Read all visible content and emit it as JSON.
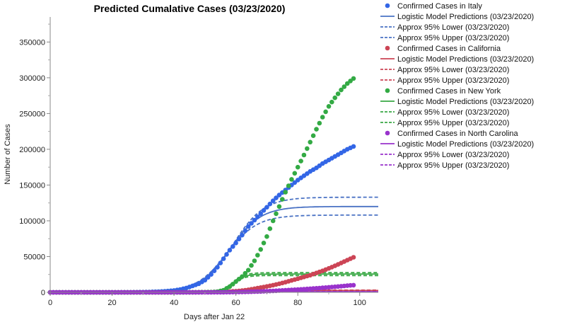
{
  "chart_data": {
    "type": "scatter",
    "title": "Predicted Cumalative Cases (03/23/2020)",
    "xlabel": "Days after Jan 22",
    "ylabel": "Number of Cases",
    "xlim": [
      0,
      106
    ],
    "ylim": [
      0,
      385000
    ],
    "xticks": [
      "0",
      "20",
      "40",
      "60",
      "80",
      "100"
    ],
    "yticks": [
      "0",
      "50000",
      "100000",
      "150000",
      "200000",
      "250000",
      "300000",
      "350000"
    ],
    "ytick_values": [
      0,
      50000,
      100000,
      150000,
      200000,
      250000,
      300000,
      350000
    ],
    "xtick_values": [
      0,
      20,
      40,
      60,
      80,
      100
    ],
    "series": [
      {
        "name": "Italy",
        "color": "#3366e6",
        "line_color": "#4a72c4",
        "confirmed_label": "Confirmed Cases in Italy",
        "prediction_label": "Logistic Model Predictions (03/23/2020)",
        "lower_label": "Approx 95% Lower (03/23/2020)",
        "upper_label": "Approx 95% Upper (03/23/2020)",
        "confirmed_x": [
          0,
          5,
          10,
          15,
          20,
          25,
          30,
          32,
          34,
          36,
          38,
          40,
          42,
          44,
          46,
          48,
          50,
          52,
          54,
          56,
          58,
          60,
          62,
          64,
          66,
          68,
          70,
          72,
          74,
          76,
          78,
          80,
          82,
          84,
          86,
          88,
          90,
          92,
          94,
          96,
          98
        ],
        "confirmed_y": [
          0,
          0,
          0,
          0,
          0,
          100,
          300,
          500,
          800,
          1200,
          1800,
          2600,
          4000,
          6000,
          9000,
          12000,
          17000,
          25000,
          35000,
          47000,
          59000,
          69000,
          80000,
          92000,
          101000,
          110000,
          119000,
          128000,
          136000,
          143000,
          150000,
          157000,
          163000,
          169000,
          174000,
          180000,
          185000,
          190000,
          195000,
          200000,
          204000
        ],
        "predicted": {
          "K": 120000,
          "r": 0.2,
          "t0": 58
        },
        "lower": {
          "K": 108000,
          "r": 0.2,
          "t0": 57
        },
        "upper": {
          "K": 133000,
          "r": 0.2,
          "t0": 59
        }
      },
      {
        "name": "California",
        "color": "#cc4455",
        "line_color": "#cc4455",
        "confirmed_label": "Confirmed Cases in California",
        "prediction_label": "Logistic Model Predictions (03/23/2020)",
        "lower_label": "Approx 95% Lower (03/23/2020)",
        "upper_label": "Approx 95% Upper (03/23/2020)",
        "confirmed_x": [
          0,
          10,
          20,
          30,
          40,
          46,
          50,
          54,
          56,
          58,
          60,
          62,
          64,
          66,
          68,
          70,
          72,
          74,
          76,
          78,
          80,
          82,
          84,
          86,
          88,
          90,
          92,
          94,
          96,
          98
        ],
        "confirmed_y": [
          0,
          0,
          0,
          0,
          50,
          100,
          200,
          400,
          700,
          1100,
          1600,
          2400,
          3600,
          5000,
          6600,
          8200,
          10000,
          12000,
          14200,
          16600,
          19000,
          21500,
          24000,
          27000,
          30000,
          33500,
          37000,
          41000,
          45000,
          49000
        ],
        "predicted": {
          "K": 2600,
          "r": 0.3,
          "t0": 60
        },
        "lower": {
          "K": 2100,
          "r": 0.3,
          "t0": 60
        },
        "upper": {
          "K": 3100,
          "r": 0.3,
          "t0": 60
        }
      },
      {
        "name": "New York",
        "color": "#33aa44",
        "line_color": "#3aa845",
        "confirmed_label": "Confirmed Cases in New York",
        "prediction_label": "Logistic Model Predictions (03/23/2020)",
        "lower_label": "Approx 95% Lower (03/23/2020)",
        "upper_label": "Approx 95% Upper (03/23/2020)",
        "confirmed_x": [
          0,
          10,
          20,
          30,
          40,
          48,
          52,
          54,
          56,
          58,
          60,
          62,
          64,
          66,
          68,
          70,
          72,
          74,
          76,
          78,
          80,
          82,
          84,
          86,
          88,
          90,
          92,
          94,
          96,
          98
        ],
        "confirmed_y": [
          0,
          0,
          0,
          0,
          0,
          100,
          300,
          900,
          3000,
          8000,
          15000,
          22000,
          31000,
          44000,
          60000,
          78000,
          100000,
          120000,
          140000,
          158000,
          175000,
          192000,
          210000,
          228000,
          245000,
          260000,
          272000,
          283000,
          292000,
          299000
        ],
        "predicted": {
          "K": 25500,
          "r": 0.5,
          "t0": 59
        },
        "lower": {
          "K": 23500,
          "r": 0.5,
          "t0": 59
        },
        "upper": {
          "K": 27500,
          "r": 0.5,
          "t0": 59
        }
      },
      {
        "name": "North Carolina",
        "color": "#9933cc",
        "line_color": "#9933cc",
        "confirmed_label": "Confirmed Cases in North Carolina",
        "prediction_label": "Logistic Model Predictions (03/23/2020)",
        "lower_label": "Approx 95% Lower (03/23/2020)",
        "upper_label": "Approx 95% Upper (03/23/2020)",
        "confirmed_x": [
          0,
          10,
          20,
          30,
          40,
          50,
          56,
          60,
          64,
          68,
          72,
          76,
          80,
          84,
          88,
          92,
          96,
          98
        ],
        "confirmed_y": [
          0,
          0,
          0,
          0,
          0,
          20,
          100,
          300,
          700,
          1200,
          2000,
          2900,
          3900,
          5000,
          6300,
          7700,
          9300,
          10000
        ],
        "predicted": {
          "K": 800,
          "r": 0.3,
          "t0": 62
        },
        "lower": {
          "K": 600,
          "r": 0.3,
          "t0": 62
        },
        "upper": {
          "K": 1000,
          "r": 0.3,
          "t0": 62
        }
      }
    ]
  }
}
